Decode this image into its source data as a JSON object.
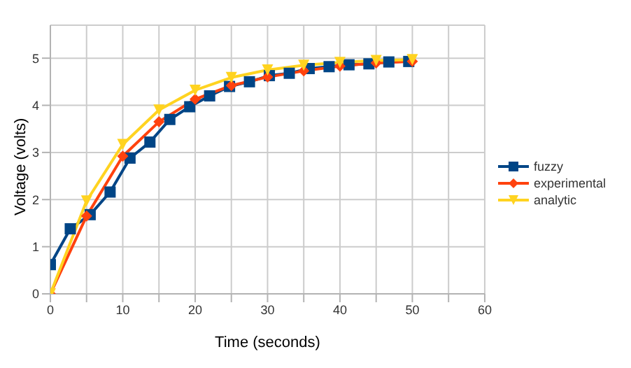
{
  "chart_data": {
    "type": "line",
    "xlabel": "Time (seconds)",
    "ylabel": "Voltage (volts)",
    "xlim": [
      0,
      60
    ],
    "ylim": [
      0,
      5.7
    ],
    "xticks": [
      0,
      {
        "value": 5,
        "label": null
      },
      10,
      {
        "value": 15,
        "label": null
      },
      20,
      {
        "value": 25,
        "label": null
      },
      30,
      {
        "value": 35,
        "label": null
      },
      40,
      {
        "value": 45,
        "label": null
      },
      50,
      {
        "value": 55,
        "label": null
      },
      60
    ],
    "yticks": [
      0,
      1,
      2,
      3,
      4,
      5
    ],
    "grid": true,
    "legend": "right",
    "series": [
      {
        "name": "fuzzy",
        "color": "#004586",
        "marker": "square",
        "x": [
          0,
          2.75,
          5.5,
          8.25,
          11,
          13.75,
          16.5,
          19.25,
          22,
          24.75,
          27.5,
          30.25,
          33,
          35.75,
          38.5,
          41.25,
          44,
          46.75,
          49.5
        ],
        "values": [
          0.62,
          1.38,
          1.68,
          2.16,
          2.88,
          3.22,
          3.7,
          3.97,
          4.2,
          4.4,
          4.5,
          4.63,
          4.68,
          4.78,
          4.82,
          4.86,
          4.88,
          4.92,
          4.93
        ]
      },
      {
        "name": "experimental",
        "color": "#ff420e",
        "marker": "diamond",
        "x": [
          0,
          5,
          10,
          15,
          20,
          25,
          30,
          35,
          40,
          45,
          50
        ],
        "values": [
          0,
          1.65,
          2.92,
          3.65,
          4.13,
          4.42,
          4.6,
          4.73,
          4.83,
          4.9,
          4.93
        ]
      },
      {
        "name": "analytic",
        "color": "#ffd320",
        "marker": "triangle",
        "x": [
          0,
          5,
          10,
          15,
          20,
          25,
          30,
          35,
          40,
          45,
          50
        ],
        "values": [
          0,
          1.97,
          3.17,
          3.9,
          4.32,
          4.59,
          4.75,
          4.85,
          4.91,
          4.95,
          4.97
        ]
      }
    ]
  }
}
